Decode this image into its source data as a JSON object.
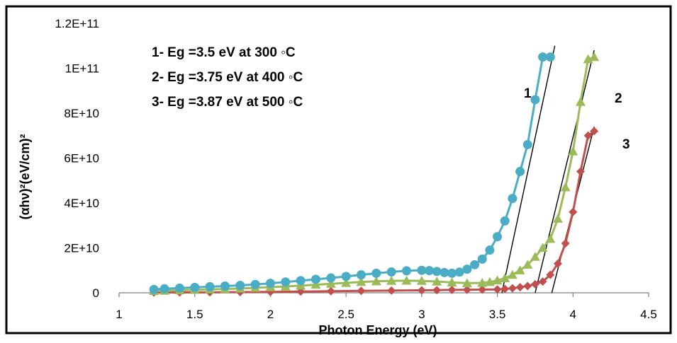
{
  "chart_data": {
    "type": "scatter",
    "title": "",
    "xlabel": "Photon Energy (eV)",
    "ylabel": "(αhν)²(eV/cm)²",
    "xlim": [
      1,
      4.5
    ],
    "ylim": [
      0,
      120000000000
    ],
    "x_ticks": [
      "1",
      "1.5",
      "2",
      "2.5",
      "3",
      "3.5",
      "4",
      "4.5"
    ],
    "y_ticks": [
      "0",
      "2E+10",
      "4E+10",
      "6E+10",
      "8E+10",
      "1E+11",
      "1.2E+11"
    ],
    "grid": false,
    "legend": "none",
    "annotations": [
      "1- Eg =3.5 eV at 300  ◦C",
      "2- Eg =3.75 eV at 400 ◦C",
      "3- Eg =3.87 eV at 500  ◦C"
    ],
    "series": [
      {
        "label": "1",
        "marker": "circle",
        "color": "#4bacc6",
        "x": [
          1.23,
          1.3,
          1.4,
          1.5,
          1.6,
          1.7,
          1.8,
          1.9,
          2.0,
          2.1,
          2.2,
          2.3,
          2.4,
          2.5,
          2.6,
          2.7,
          2.8,
          2.9,
          3.0,
          3.05,
          3.1,
          3.15,
          3.2,
          3.25,
          3.3,
          3.35,
          3.4,
          3.45,
          3.5,
          3.55,
          3.6,
          3.65,
          3.7,
          3.75,
          3.8,
          3.85
        ],
        "y": [
          1500000000.0,
          1800000000.0,
          2100000000.0,
          2400000000.0,
          2700000000.0,
          3000000000.0,
          3300000000.0,
          3700000000.0,
          4200000000.0,
          4800000000.0,
          5400000000.0,
          6000000000.0,
          6600000000.0,
          7300000000.0,
          8000000000.0,
          8700000000.0,
          9300000000.0,
          9800000000.0,
          10000000000.0,
          9900000000.0,
          9500000000.0,
          9000000000.0,
          8700000000.0,
          9200000000.0,
          10500000000.0,
          12500000000.0,
          15000000000.0,
          19000000000.0,
          25000000000.0,
          32000000000.0,
          42000000000.0,
          54000000000.0,
          66000000000.0,
          86000000000.0,
          105000000000.0,
          105000000000.0
        ]
      },
      {
        "label": "2",
        "marker": "triangle",
        "color": "#9bbb59",
        "x": [
          1.23,
          1.3,
          1.4,
          1.5,
          1.6,
          1.7,
          1.8,
          1.9,
          2.0,
          2.1,
          2.2,
          2.3,
          2.4,
          2.5,
          2.6,
          2.7,
          2.8,
          2.9,
          3.0,
          3.1,
          3.2,
          3.3,
          3.4,
          3.45,
          3.5,
          3.55,
          3.6,
          3.65,
          3.7,
          3.75,
          3.8,
          3.85,
          3.9,
          3.95,
          4.0,
          4.05,
          4.1,
          4.14
        ],
        "y": [
          800000000.0,
          900000000.0,
          1100000000.0,
          1300000000.0,
          1500000000.0,
          1700000000.0,
          1900000000.0,
          2200000000.0,
          2500000000.0,
          2800000000.0,
          3200000000.0,
          3600000000.0,
          4000000000.0,
          4400000000.0,
          4800000000.0,
          5100000000.0,
          5300000000.0,
          5400000000.0,
          5300000000.0,
          5000000000.0,
          4600000000.0,
          4300000000.0,
          4400000000.0,
          4800000000.0,
          5500000000.0,
          6500000000.0,
          8000000000.0,
          10000000000.0,
          12500000000.0,
          16000000000.0,
          20000000000.0,
          24000000000.0,
          33000000000.0,
          47000000000.0,
          63000000000.0,
          85000000000.0,
          104000000000.0,
          105000000000.0
        ]
      },
      {
        "label": "3",
        "marker": "diamond",
        "color": "#c0504d",
        "x": [
          1.23,
          1.4,
          1.6,
          1.8,
          2.0,
          2.2,
          2.4,
          2.6,
          2.8,
          3.0,
          3.1,
          3.2,
          3.3,
          3.4,
          3.5,
          3.55,
          3.6,
          3.65,
          3.7,
          3.75,
          3.8,
          3.85,
          3.9,
          3.95,
          4.0,
          4.05,
          4.1,
          4.14
        ],
        "y": [
          100000000.0,
          150000000.0,
          200000000.0,
          300000000.0,
          400000000.0,
          550000000.0,
          700000000.0,
          850000000.0,
          1000000000.0,
          1100000000.0,
          1200000000.0,
          1300000000.0,
          1350000000.0,
          1400000000.0,
          1500000000.0,
          1700000000.0,
          2000000000.0,
          2500000000.0,
          3000000000.0,
          3800000000.0,
          5000000000.0,
          8000000000.0,
          13000000000.0,
          22000000000.0,
          36000000000.0,
          54000000000.0,
          70000000000.0,
          72000000000.0
        ]
      }
    ],
    "fit_lines": [
      {
        "label": "1",
        "x": [
          3.53,
          3.88
        ],
        "y": [
          0,
          110000000000.0
        ]
      },
      {
        "label": "2",
        "x": [
          3.75,
          4.14
        ],
        "y": [
          0,
          108000000000.0
        ]
      },
      {
        "label": "3",
        "x": [
          3.86,
          4.14
        ],
        "y": [
          0,
          74000000000.0
        ]
      }
    ]
  }
}
